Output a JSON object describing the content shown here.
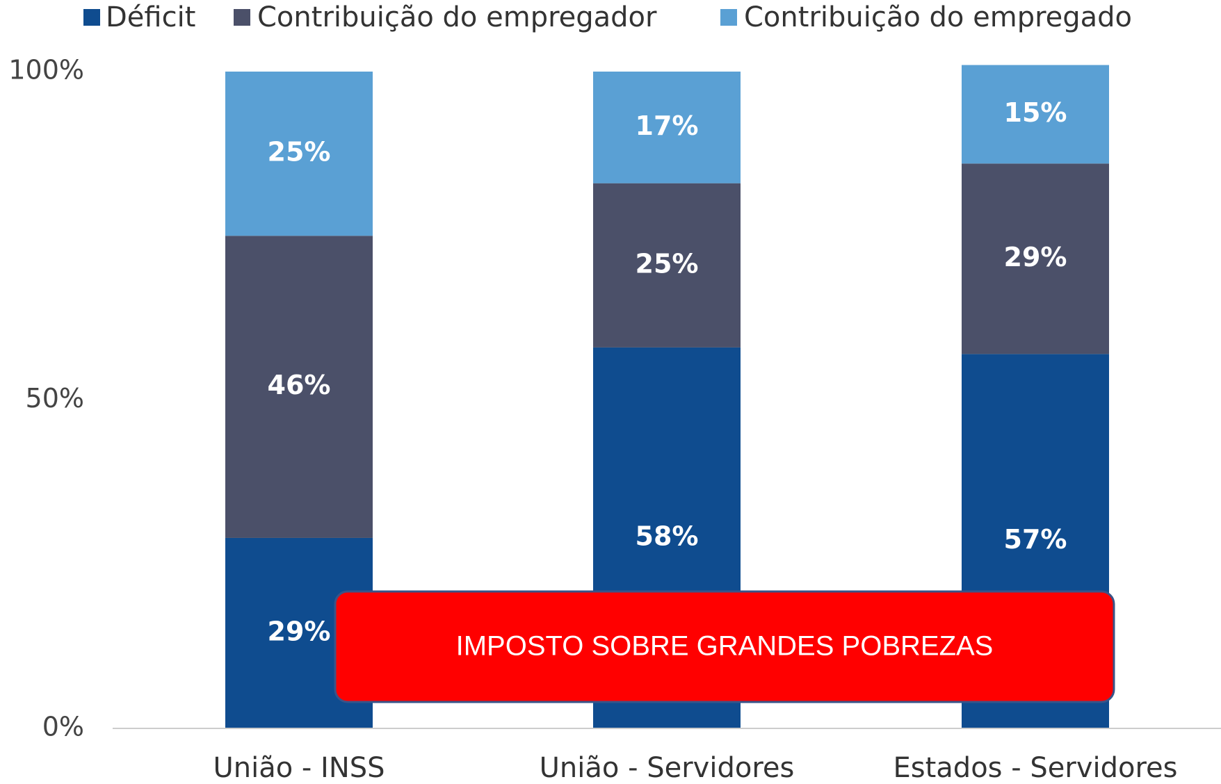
{
  "chart_data": {
    "type": "stacked_bar",
    "categories": [
      "União - INSS",
      "União - Servidores",
      "Estados - Servidores"
    ],
    "series": [
      {
        "name": "Déficit",
        "color": "#0f4c8f",
        "values": [
          29,
          58,
          57
        ],
        "value_labels": [
          "29%",
          "58%",
          "57%"
        ]
      },
      {
        "name": "Contribuição do empregador",
        "color": "#4b5069",
        "values": [
          46,
          25,
          29
        ],
        "value_labels": [
          "46%",
          "25%",
          "29%"
        ]
      },
      {
        "name": "Contribuição do empregado",
        "color": "#5aa0d4",
        "values": [
          25,
          17,
          15
        ],
        "value_labels": [
          "25%",
          "17%",
          "15%"
        ]
      }
    ],
    "ylim": [
      0,
      100
    ],
    "yticks": [
      {
        "value": 0,
        "label": "0%"
      },
      {
        "value": 50,
        "label": "50%"
      },
      {
        "value": 100,
        "label": "100%"
      }
    ],
    "legend": "top",
    "annotation": "IMPOSTO SOBRE GRANDES POBREZAS"
  }
}
